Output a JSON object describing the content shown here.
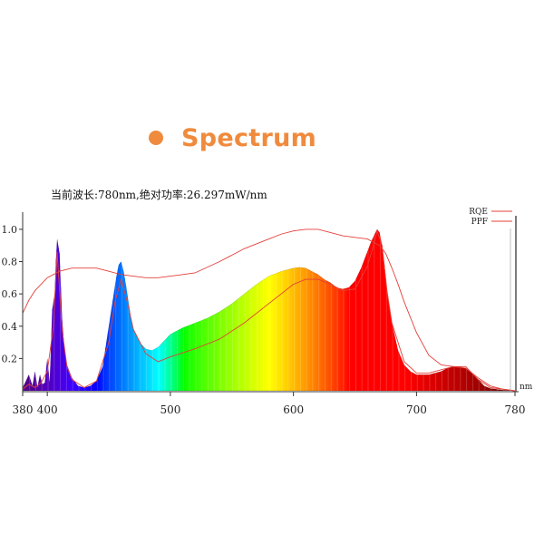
{
  "heading": {
    "title": "Spectrum",
    "bullet_color": "#f08a3c"
  },
  "readout": "当前波长:780nm,绝对功率:26.297mW/nm",
  "chart_data": {
    "type": "area",
    "xlabel": "nm",
    "ylabel": "",
    "xlim": [
      380,
      780
    ],
    "ylim": [
      0,
      1.05
    ],
    "xticks": [
      380,
      400,
      500,
      600,
      700,
      780
    ],
    "yticks": [
      0.2,
      0.4,
      0.6,
      0.8,
      1.0
    ],
    "ytick_labels": [
      "0.2",
      "0.4",
      "0.6",
      "0.8",
      "1.0"
    ],
    "legend_position": "top-right",
    "cursor_wavelength": 780,
    "series": [
      {
        "name": "",
        "kind": "filled-spectrum",
        "x": [
          380,
          382,
          385,
          388,
          390,
          392,
          394,
          396,
          398,
          400,
          402,
          404,
          405,
          406,
          407,
          408,
          410,
          412,
          414,
          416,
          420,
          425,
          430,
          435,
          440,
          445,
          450,
          453,
          456,
          458,
          460,
          462,
          464,
          466,
          468,
          470,
          475,
          480,
          485,
          490,
          495,
          500,
          510,
          520,
          530,
          540,
          550,
          560,
          570,
          580,
          590,
          600,
          605,
          610,
          615,
          620,
          625,
          630,
          635,
          640,
          645,
          650,
          655,
          660,
          663,
          666,
          668,
          670,
          672,
          674,
          676,
          680,
          685,
          690,
          695,
          700,
          710,
          720,
          725,
          730,
          735,
          740,
          745,
          750,
          755,
          760,
          770,
          780
        ],
        "values": [
          0.02,
          0.05,
          0.1,
          0.03,
          0.12,
          0.02,
          0.1,
          0.04,
          0.05,
          0.2,
          0.05,
          0.5,
          0.55,
          0.6,
          0.8,
          0.94,
          0.85,
          0.45,
          0.25,
          0.16,
          0.08,
          0.03,
          0.02,
          0.03,
          0.06,
          0.15,
          0.4,
          0.55,
          0.7,
          0.78,
          0.8,
          0.74,
          0.65,
          0.55,
          0.45,
          0.38,
          0.3,
          0.26,
          0.25,
          0.27,
          0.31,
          0.35,
          0.39,
          0.42,
          0.45,
          0.49,
          0.54,
          0.6,
          0.66,
          0.71,
          0.74,
          0.76,
          0.765,
          0.76,
          0.74,
          0.72,
          0.69,
          0.67,
          0.64,
          0.63,
          0.64,
          0.68,
          0.76,
          0.86,
          0.92,
          0.97,
          1.0,
          0.98,
          0.9,
          0.78,
          0.62,
          0.42,
          0.25,
          0.16,
          0.12,
          0.1,
          0.1,
          0.12,
          0.14,
          0.15,
          0.15,
          0.14,
          0.11,
          0.07,
          0.03,
          0.015,
          0.005,
          0.0
        ]
      },
      {
        "name": "RQE",
        "kind": "line",
        "color": "#e3403a",
        "x": [
          380,
          385,
          390,
          400,
          410,
          420,
          430,
          440,
          450,
          460,
          470,
          480,
          490,
          500,
          510,
          520,
          540,
          560,
          570,
          580,
          590,
          600,
          610,
          620,
          630,
          640,
          650,
          660,
          670,
          675,
          680,
          685,
          690,
          700,
          710,
          720,
          730,
          740,
          750,
          760,
          770,
          780
        ],
        "values": [
          0.48,
          0.56,
          0.62,
          0.7,
          0.74,
          0.76,
          0.76,
          0.76,
          0.74,
          0.72,
          0.71,
          0.7,
          0.7,
          0.71,
          0.72,
          0.73,
          0.8,
          0.88,
          0.91,
          0.94,
          0.97,
          0.99,
          1.0,
          1.0,
          0.98,
          0.96,
          0.95,
          0.94,
          0.9,
          0.85,
          0.76,
          0.66,
          0.55,
          0.36,
          0.22,
          0.16,
          0.15,
          0.14,
          0.08,
          0.03,
          0.01,
          0.0
        ]
      },
      {
        "name": "PPF",
        "kind": "line",
        "color": "#e3403a",
        "x": [
          380,
          385,
          390,
          395,
          400,
          405,
          408,
          412,
          416,
          420,
          430,
          440,
          450,
          455,
          460,
          465,
          470,
          480,
          490,
          500,
          520,
          540,
          560,
          580,
          600,
          610,
          620,
          630,
          640,
          650,
          660,
          665,
          668,
          672,
          676,
          680,
          690,
          700,
          710,
          720,
          730,
          740,
          750,
          760,
          780
        ],
        "values": [
          0.01,
          0.04,
          0.02,
          0.05,
          0.12,
          0.4,
          0.86,
          0.38,
          0.15,
          0.07,
          0.02,
          0.06,
          0.3,
          0.55,
          0.69,
          0.55,
          0.38,
          0.23,
          0.18,
          0.21,
          0.26,
          0.32,
          0.42,
          0.54,
          0.66,
          0.69,
          0.69,
          0.66,
          0.62,
          0.63,
          0.77,
          0.9,
          0.99,
          0.9,
          0.62,
          0.42,
          0.18,
          0.11,
          0.11,
          0.13,
          0.15,
          0.15,
          0.07,
          0.02,
          0.0
        ]
      }
    ]
  }
}
